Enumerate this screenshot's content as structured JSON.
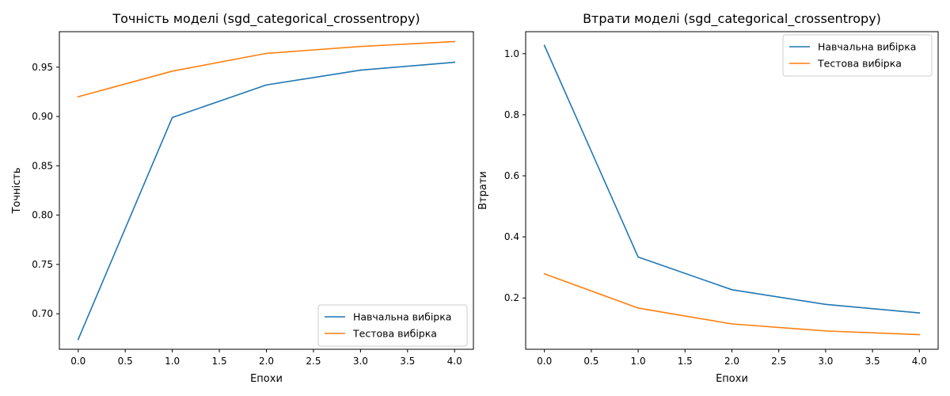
{
  "chart_data": [
    {
      "type": "line",
      "title": "Точність моделі (sgd_categorical_crossentropy)",
      "xlabel": "Епохи",
      "ylabel": "Точність",
      "xlim": [
        -0.2,
        4.2
      ],
      "ylim": [
        0.664,
        0.986
      ],
      "xticks": [
        0.0,
        0.5,
        1.0,
        1.5,
        2.0,
        2.5,
        3.0,
        3.5,
        4.0
      ],
      "yticks": [
        0.7,
        0.75,
        0.8,
        0.85,
        0.9,
        0.95
      ],
      "xtick_labels": [
        "0.0",
        "0.5",
        "1.0",
        "1.5",
        "2.0",
        "2.5",
        "3.0",
        "3.5",
        "4.0"
      ],
      "ytick_labels": [
        "0.70",
        "0.75",
        "0.80",
        "0.85",
        "0.90",
        "0.95"
      ],
      "legend_position": "lower-right",
      "grid": false,
      "x": [
        0,
        1,
        2,
        3,
        4
      ],
      "series": [
        {
          "name": "Навчальна вибірка",
          "color": "#1f77b4",
          "values": [
            0.674,
            0.899,
            0.932,
            0.947,
            0.955
          ]
        },
        {
          "name": "Тестова вибірка",
          "color": "#ff7f0e",
          "values": [
            0.92,
            0.946,
            0.964,
            0.971,
            0.976
          ]
        }
      ]
    },
    {
      "type": "line",
      "title": "Втрати моделі (sgd_categorical_crossentropy)",
      "xlabel": "Епохи",
      "ylabel": "Втрати",
      "xlim": [
        -0.2,
        4.2
      ],
      "ylim": [
        0.032,
        1.072
      ],
      "xticks": [
        0.0,
        0.5,
        1.0,
        1.5,
        2.0,
        2.5,
        3.0,
        3.5,
        4.0
      ],
      "yticks": [
        0.2,
        0.4,
        0.6,
        0.8,
        1.0
      ],
      "xtick_labels": [
        "0.0",
        "0.5",
        "1.0",
        "1.5",
        "2.0",
        "2.5",
        "3.0",
        "3.5",
        "4.0"
      ],
      "ytick_labels": [
        "0.2",
        "0.4",
        "0.6",
        "0.8",
        "1.0"
      ],
      "legend_position": "upper-right",
      "grid": false,
      "x": [
        0,
        1,
        2,
        3,
        4
      ],
      "series": [
        {
          "name": "Навчальна вибірка",
          "color": "#1f77b4",
          "values": [
            1.027,
            0.334,
            0.227,
            0.179,
            0.151
          ]
        },
        {
          "name": "Тестова вибірка",
          "color": "#ff7f0e",
          "values": [
            0.279,
            0.167,
            0.115,
            0.092,
            0.08
          ]
        }
      ]
    }
  ]
}
